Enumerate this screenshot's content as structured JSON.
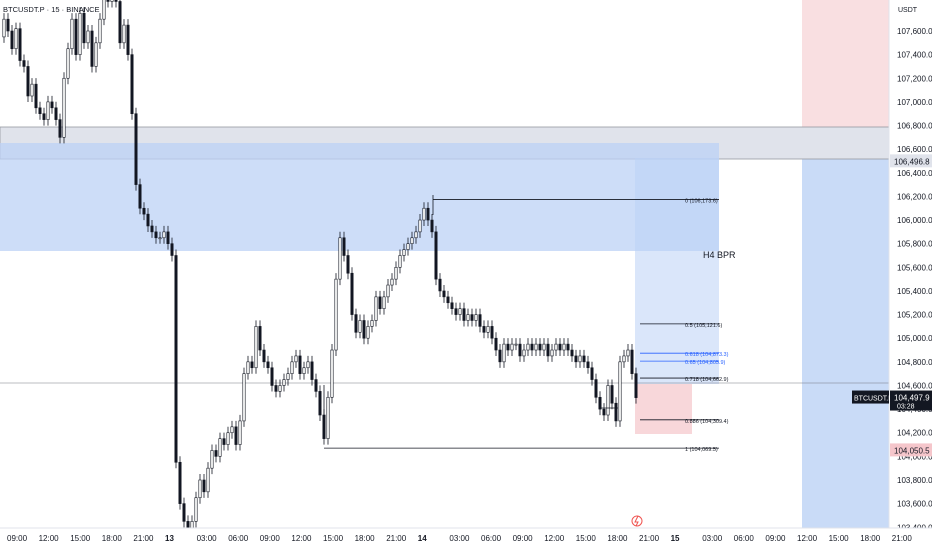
{
  "header": {
    "symbol_title": "BTCUSDT.P · 15 · BINANCE"
  },
  "price_axis": {
    "unit": "USDT",
    "ticks": [
      107600,
      107400,
      107200,
      107000,
      106800,
      106600,
      106400,
      106200,
      106000,
      105800,
      105600,
      105400,
      105200,
      105000,
      104800,
      104600,
      104400,
      104200,
      104000,
      103800,
      103600,
      103400
    ],
    "tick_labels": [
      "107,600.0",
      "107,400.0",
      "107,200.0",
      "107,000.0",
      "106,800.0",
      "106,600.0",
      "106,400.0",
      "106,200.0",
      "106,000.0",
      "105,800.0",
      "105,600.0",
      "105,400.0",
      "105,200.0",
      "105,000.0",
      "104,800.0",
      "104,600.0",
      "104,400.0",
      "104,200.0",
      "104,000.0",
      "103,800.0",
      "103,600.0",
      "103,400.0"
    ],
    "badges": [
      {
        "name": "last-price-badge",
        "symbol": "BTCUSDT.P",
        "value": "104,497.9",
        "sub": "03:28",
        "price": 104497.9,
        "color": "#131722"
      },
      {
        "name": "level-badge-106496",
        "value": "106,496.8",
        "price": 106496.8,
        "color": "#e0e3eb"
      },
      {
        "name": "level-badge-104050",
        "value": "104,050.5",
        "price": 104050.5,
        "color": "#f5c6cb"
      }
    ]
  },
  "time_axis": {
    "labels": [
      "09:00",
      "12:00",
      "15:00",
      "18:00",
      "21:00",
      "13",
      "03:00",
      "06:00",
      "09:00",
      "12:00",
      "15:00",
      "18:00",
      "21:00",
      "14",
      "03:00",
      "06:00",
      "09:00",
      "12:00",
      "15:00",
      "18:00",
      "21:00",
      "15",
      "03:00",
      "06:00",
      "09:00",
      "12:00",
      "15:00",
      "18:00",
      "21:00"
    ]
  },
  "annotations": {
    "zone_label": "H4 BPR",
    "fib_levels": [
      {
        "label": "0 (106,173.6)",
        "price": 106173.6,
        "color": "#131722"
      },
      {
        "label": "0.5 (105,121.6)",
        "price": 105121.6,
        "color": "#131722"
      },
      {
        "label": "0.618 (104,873.3)",
        "price": 104873.3,
        "color": "#2962ff"
      },
      {
        "label": "0.65 (104,805.9)",
        "price": 104805.9,
        "color": "#2962ff"
      },
      {
        "label": "0.718 (104,662.9)",
        "price": 104662.9,
        "color": "#131722"
      },
      {
        "label": "0.886 (104,309.4)",
        "price": 104309.4,
        "color": "#131722"
      },
      {
        "label": "1 (104,069.5)",
        "price": 104069.5,
        "color": "#131722"
      }
    ]
  },
  "colors": {
    "candle": "#131722",
    "zone_blue": "#bcd2f5",
    "zone_grey": "#d1d4dc",
    "zone_pink": "#f8d7da",
    "last_price_line": "#787b86"
  },
  "chart_data": {
    "type": "candlestick",
    "title": "BTCUSDT.P · 15 · BINANCE",
    "xlabel": "",
    "ylabel": "USDT",
    "ylim": [
      103300,
      107800
    ],
    "close_path": [
      [
        0,
        107550
      ],
      [
        4,
        107700
      ],
      [
        8,
        107600
      ],
      [
        12,
        107450
      ],
      [
        16,
        107620
      ],
      [
        20,
        107350
      ],
      [
        24,
        107300
      ],
      [
        28,
        107050
      ],
      [
        32,
        107150
      ],
      [
        36,
        106950
      ],
      [
        40,
        106900
      ],
      [
        44,
        106850
      ],
      [
        48,
        107000
      ],
      [
        52,
        106950
      ],
      [
        56,
        106850
      ],
      [
        60,
        106700
      ],
      [
        64,
        107200
      ],
      [
        68,
        107450
      ],
      [
        72,
        107700
      ],
      [
        76,
        107400
      ],
      [
        80,
        107750
      ],
      [
        84,
        107500
      ],
      [
        88,
        107600
      ],
      [
        92,
        107300
      ],
      [
        96,
        107500
      ],
      [
        100,
        107700
      ],
      [
        104,
        107900
      ],
      [
        108,
        107850
      ],
      [
        112,
        108000
      ],
      [
        116,
        107850
      ],
      [
        120,
        107500
      ],
      [
        124,
        107650
      ],
      [
        128,
        107400
      ],
      [
        132,
        106900
      ],
      [
        136,
        106300
      ],
      [
        140,
        106100
      ],
      [
        144,
        106050
      ],
      [
        148,
        105950
      ],
      [
        152,
        105900
      ],
      [
        156,
        105850
      ],
      [
        160,
        105850
      ],
      [
        164,
        105900
      ],
      [
        168,
        105800
      ],
      [
        172,
        105700
      ],
      [
        176,
        103950
      ],
      [
        180,
        103600
      ],
      [
        184,
        103450
      ],
      [
        188,
        103300
      ],
      [
        192,
        103450
      ],
      [
        196,
        103650
      ],
      [
        200,
        103800
      ],
      [
        204,
        103700
      ],
      [
        208,
        103900
      ],
      [
        212,
        104050
      ],
      [
        216,
        104000
      ],
      [
        220,
        104150
      ],
      [
        224,
        104100
      ],
      [
        228,
        104200
      ],
      [
        232,
        104250
      ],
      [
        236,
        104100
      ],
      [
        240,
        104300
      ],
      [
        244,
        104700
      ],
      [
        248,
        104800
      ],
      [
        252,
        104750
      ],
      [
        256,
        105100
      ],
      [
        260,
        104900
      ],
      [
        264,
        104800
      ],
      [
        268,
        104750
      ],
      [
        272,
        104600
      ],
      [
        276,
        104550
      ],
      [
        280,
        104600
      ],
      [
        284,
        104650
      ],
      [
        288,
        104700
      ],
      [
        292,
        104800
      ],
      [
        296,
        104850
      ],
      [
        300,
        104700
      ],
      [
        304,
        104750
      ],
      [
        308,
        104800
      ],
      [
        312,
        104650
      ],
      [
        316,
        104550
      ],
      [
        320,
        104350
      ],
      [
        324,
        104150
      ],
      [
        328,
        104500
      ],
      [
        332,
        104900
      ],
      [
        336,
        105500
      ],
      [
        340,
        105850
      ],
      [
        344,
        105700
      ],
      [
        348,
        105550
      ],
      [
        352,
        105200
      ],
      [
        356,
        105050
      ],
      [
        360,
        105150
      ],
      [
        364,
        105000
      ],
      [
        368,
        105100
      ],
      [
        372,
        105150
      ],
      [
        376,
        105350
      ],
      [
        380,
        105250
      ],
      [
        384,
        105350
      ],
      [
        388,
        105450
      ],
      [
        392,
        105500
      ],
      [
        396,
        105600
      ],
      [
        400,
        105700
      ],
      [
        404,
        105750
      ],
      [
        408,
        105800
      ],
      [
        412,
        105850
      ],
      [
        416,
        105900
      ],
      [
        420,
        106000
      ],
      [
        424,
        106100
      ],
      [
        428,
        106000
      ],
      [
        432,
        105900
      ],
      [
        436,
        105500
      ],
      [
        440,
        105400
      ],
      [
        444,
        105350
      ],
      [
        448,
        105300
      ],
      [
        452,
        105250
      ],
      [
        456,
        105200
      ],
      [
        460,
        105250
      ],
      [
        464,
        105150
      ],
      [
        468,
        105200
      ],
      [
        472,
        105150
      ],
      [
        476,
        105200
      ],
      [
        480,
        105100
      ],
      [
        484,
        105050
      ],
      [
        488,
        105100
      ],
      [
        492,
        105000
      ],
      [
        496,
        104900
      ],
      [
        500,
        104800
      ],
      [
        504,
        104950
      ],
      [
        508,
        104900
      ],
      [
        512,
        104950
      ],
      [
        516,
        104950
      ],
      [
        520,
        104850
      ],
      [
        524,
        104900
      ],
      [
        528,
        104950
      ],
      [
        532,
        104900
      ],
      [
        536,
        104950
      ],
      [
        540,
        104900
      ],
      [
        544,
        104950
      ],
      [
        548,
        104850
      ],
      [
        552,
        104900
      ],
      [
        556,
        104950
      ],
      [
        560,
        104900
      ],
      [
        564,
        104950
      ],
      [
        568,
        104900
      ],
      [
        572,
        104850
      ],
      [
        576,
        104800
      ],
      [
        580,
        104850
      ],
      [
        584,
        104800
      ],
      [
        588,
        104750
      ],
      [
        592,
        104650
      ],
      [
        596,
        104500
      ],
      [
        600,
        104400
      ],
      [
        604,
        104350
      ],
      [
        608,
        104600
      ],
      [
        612,
        104450
      ],
      [
        616,
        104300
      ],
      [
        620,
        104800
      ],
      [
        624,
        104850
      ],
      [
        628,
        104900
      ],
      [
        632,
        104700
      ],
      [
        636,
        104497
      ]
    ]
  }
}
